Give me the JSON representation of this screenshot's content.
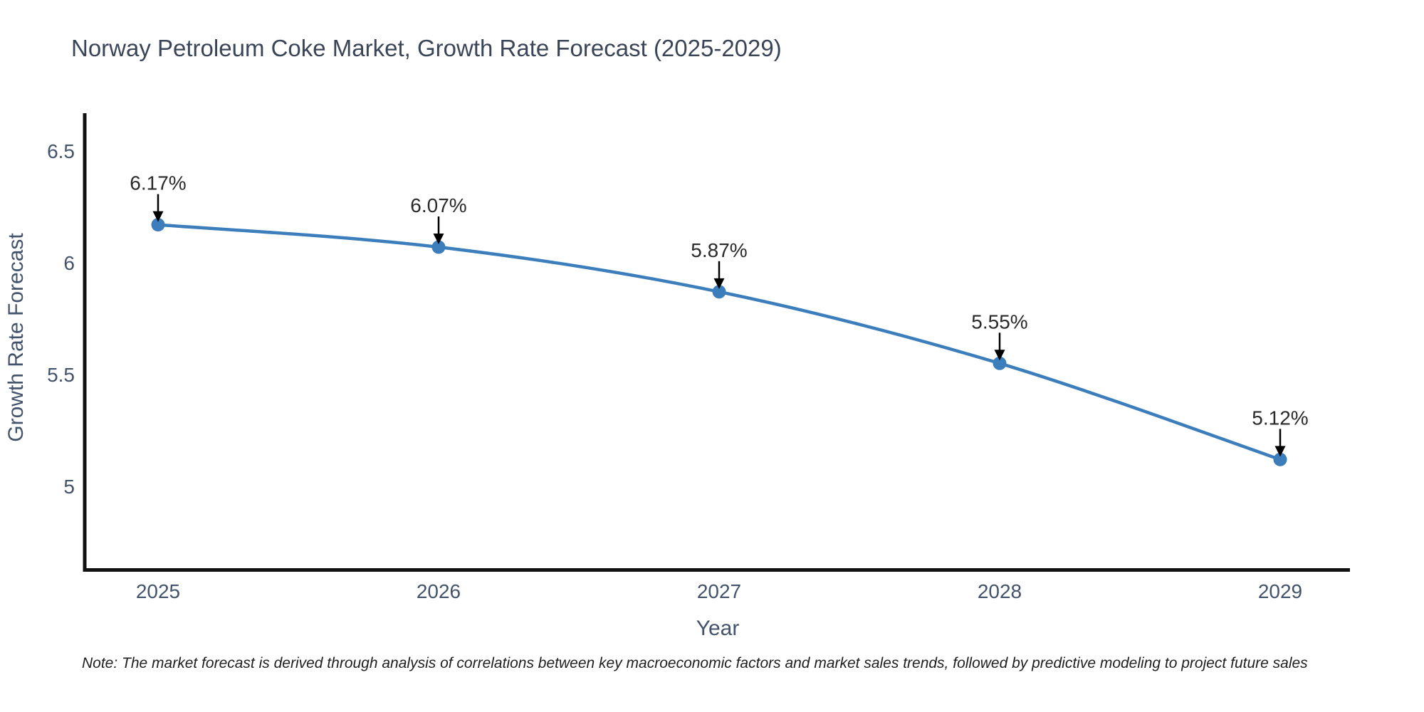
{
  "note": {
    "text": "Note: The market forecast is derived through analysis of correlations between key macroeconomic factors and market sales trends, followed by predictive modeling to project future sales"
  },
  "chart_data": {
    "type": "line",
    "title": "Norway Petroleum Coke Market, Growth Rate Forecast (2025-2029)",
    "xlabel": "Year",
    "ylabel": "Growth Rate Forecast",
    "x": [
      2025,
      2026,
      2027,
      2028,
      2029
    ],
    "series": [
      {
        "name": "Growth Rate Forecast",
        "values": [
          6.17,
          6.07,
          5.87,
          5.55,
          5.12
        ]
      }
    ],
    "point_labels": [
      "6.17%",
      "6.07%",
      "5.87%",
      "5.55%",
      "5.12%"
    ],
    "xtick_labels": [
      "2025",
      "2026",
      "2027",
      "2028",
      "2029"
    ],
    "ytick_values": [
      6.5,
      6.0,
      5.5,
      5.0
    ],
    "ytick_labels": [
      "6.5",
      "6",
      "5.5",
      "5"
    ],
    "xlim": [
      2024.73,
      2029.25
    ],
    "ylim": [
      4.62,
      6.67
    ],
    "grid": false,
    "legend": "none",
    "line_shape": "spline",
    "annotations_style": "value labels with downward arrows above each point",
    "colors": {
      "line": "#3c7ebc",
      "marker": "#3c7ebc",
      "axis": "#111111",
      "tick_text": "#42536b",
      "title_text": "#3b4558",
      "annotation_text": "#2a2a2a",
      "arrow": "#000000",
      "background": "#ffffff"
    }
  }
}
